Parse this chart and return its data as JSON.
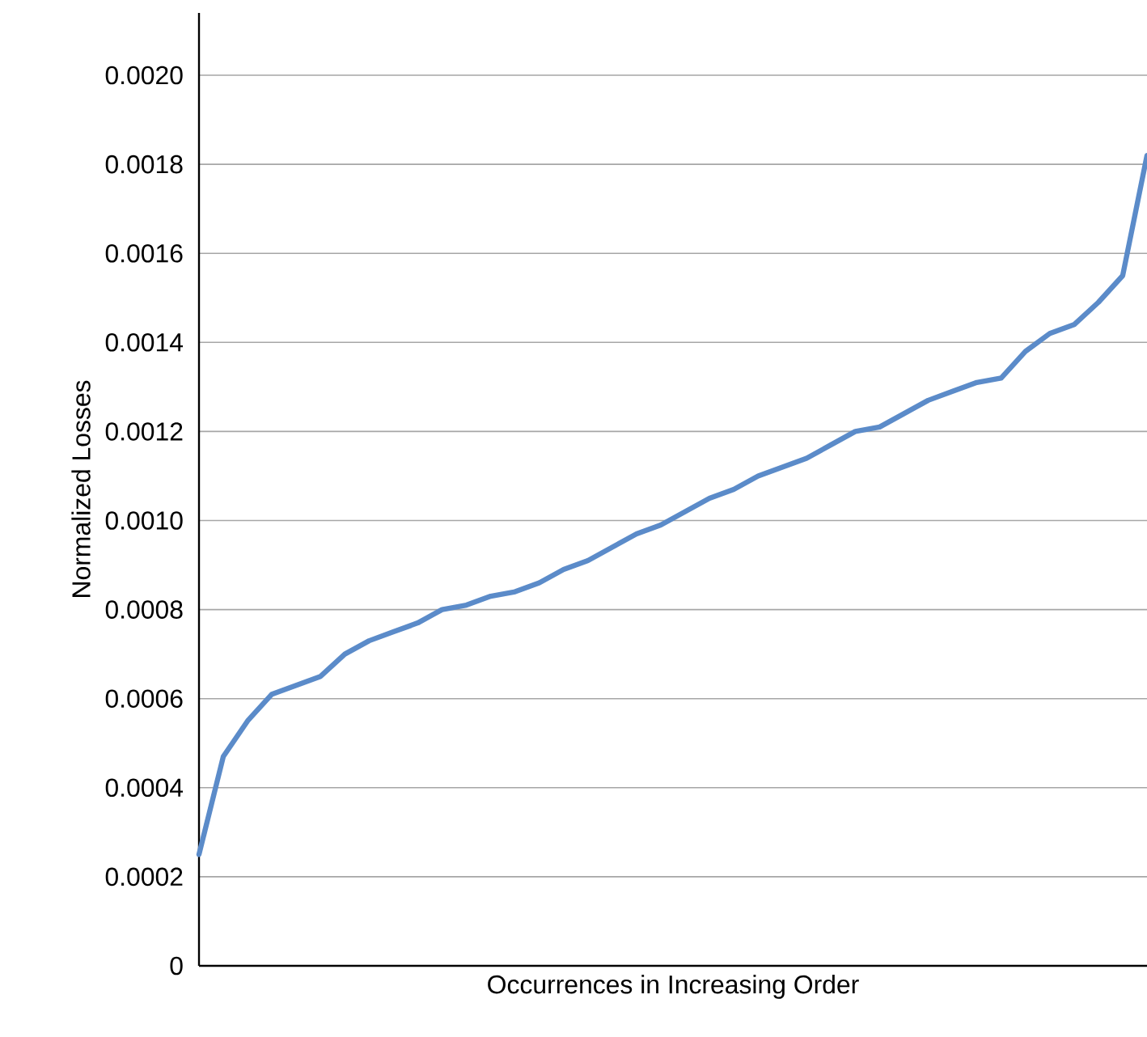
{
  "chart_data": {
    "type": "line",
    "xlabel": "Occurrences in Increasing Order",
    "ylabel": "Normalized Losses",
    "categories": [
      null,
      null,
      null,
      null,
      null,
      null,
      null,
      null,
      null,
      null,
      null,
      null,
      null,
      null,
      null,
      null,
      null,
      null,
      null,
      null,
      null,
      null,
      null,
      null,
      null,
      null,
      null,
      null,
      null,
      null,
      null,
      null,
      null,
      null,
      null,
      null,
      null,
      null,
      null,
      null
    ],
    "series": [
      {
        "color": "#5b8bc9",
        "values": [
          0.00025,
          0.00047,
          0.00055,
          0.00061,
          0.00063,
          0.00065,
          0.0007,
          0.00073,
          0.00075,
          0.00077,
          0.0008,
          0.00081,
          0.00083,
          0.00084,
          0.00086,
          0.00089,
          0.00091,
          0.00094,
          0.00097,
          0.00099,
          0.00102,
          0.00105,
          0.00107,
          0.0011,
          0.00112,
          0.00114,
          0.00117,
          0.0012,
          0.00121,
          0.00124,
          0.00127,
          0.00129,
          0.00131,
          0.00132,
          0.00138,
          0.00142,
          0.00144,
          0.00149,
          0.00155,
          0.00182
        ]
      }
    ],
    "ylim": [
      0,
      0.00214
    ],
    "yticks": [
      {
        "value": 0,
        "label": "0"
      },
      {
        "value": 0.0002,
        "label": "0.0002"
      },
      {
        "value": 0.0004,
        "label": "0.0004"
      },
      {
        "value": 0.0006,
        "label": "0.0006"
      },
      {
        "value": 0.0008,
        "label": "0.0008"
      },
      {
        "value": 0.001,
        "label": "0.0010"
      },
      {
        "value": 0.0012,
        "label": "0.0012"
      },
      {
        "value": 0.0014,
        "label": "0.0014"
      },
      {
        "value": 0.0016,
        "label": "0.0016"
      },
      {
        "value": 0.0018,
        "label": "0.0018"
      },
      {
        "value": 0.002,
        "label": "0.0020"
      }
    ],
    "grid": "y",
    "tick_labels": "y",
    "marker": "none",
    "line_style": "solid"
  }
}
